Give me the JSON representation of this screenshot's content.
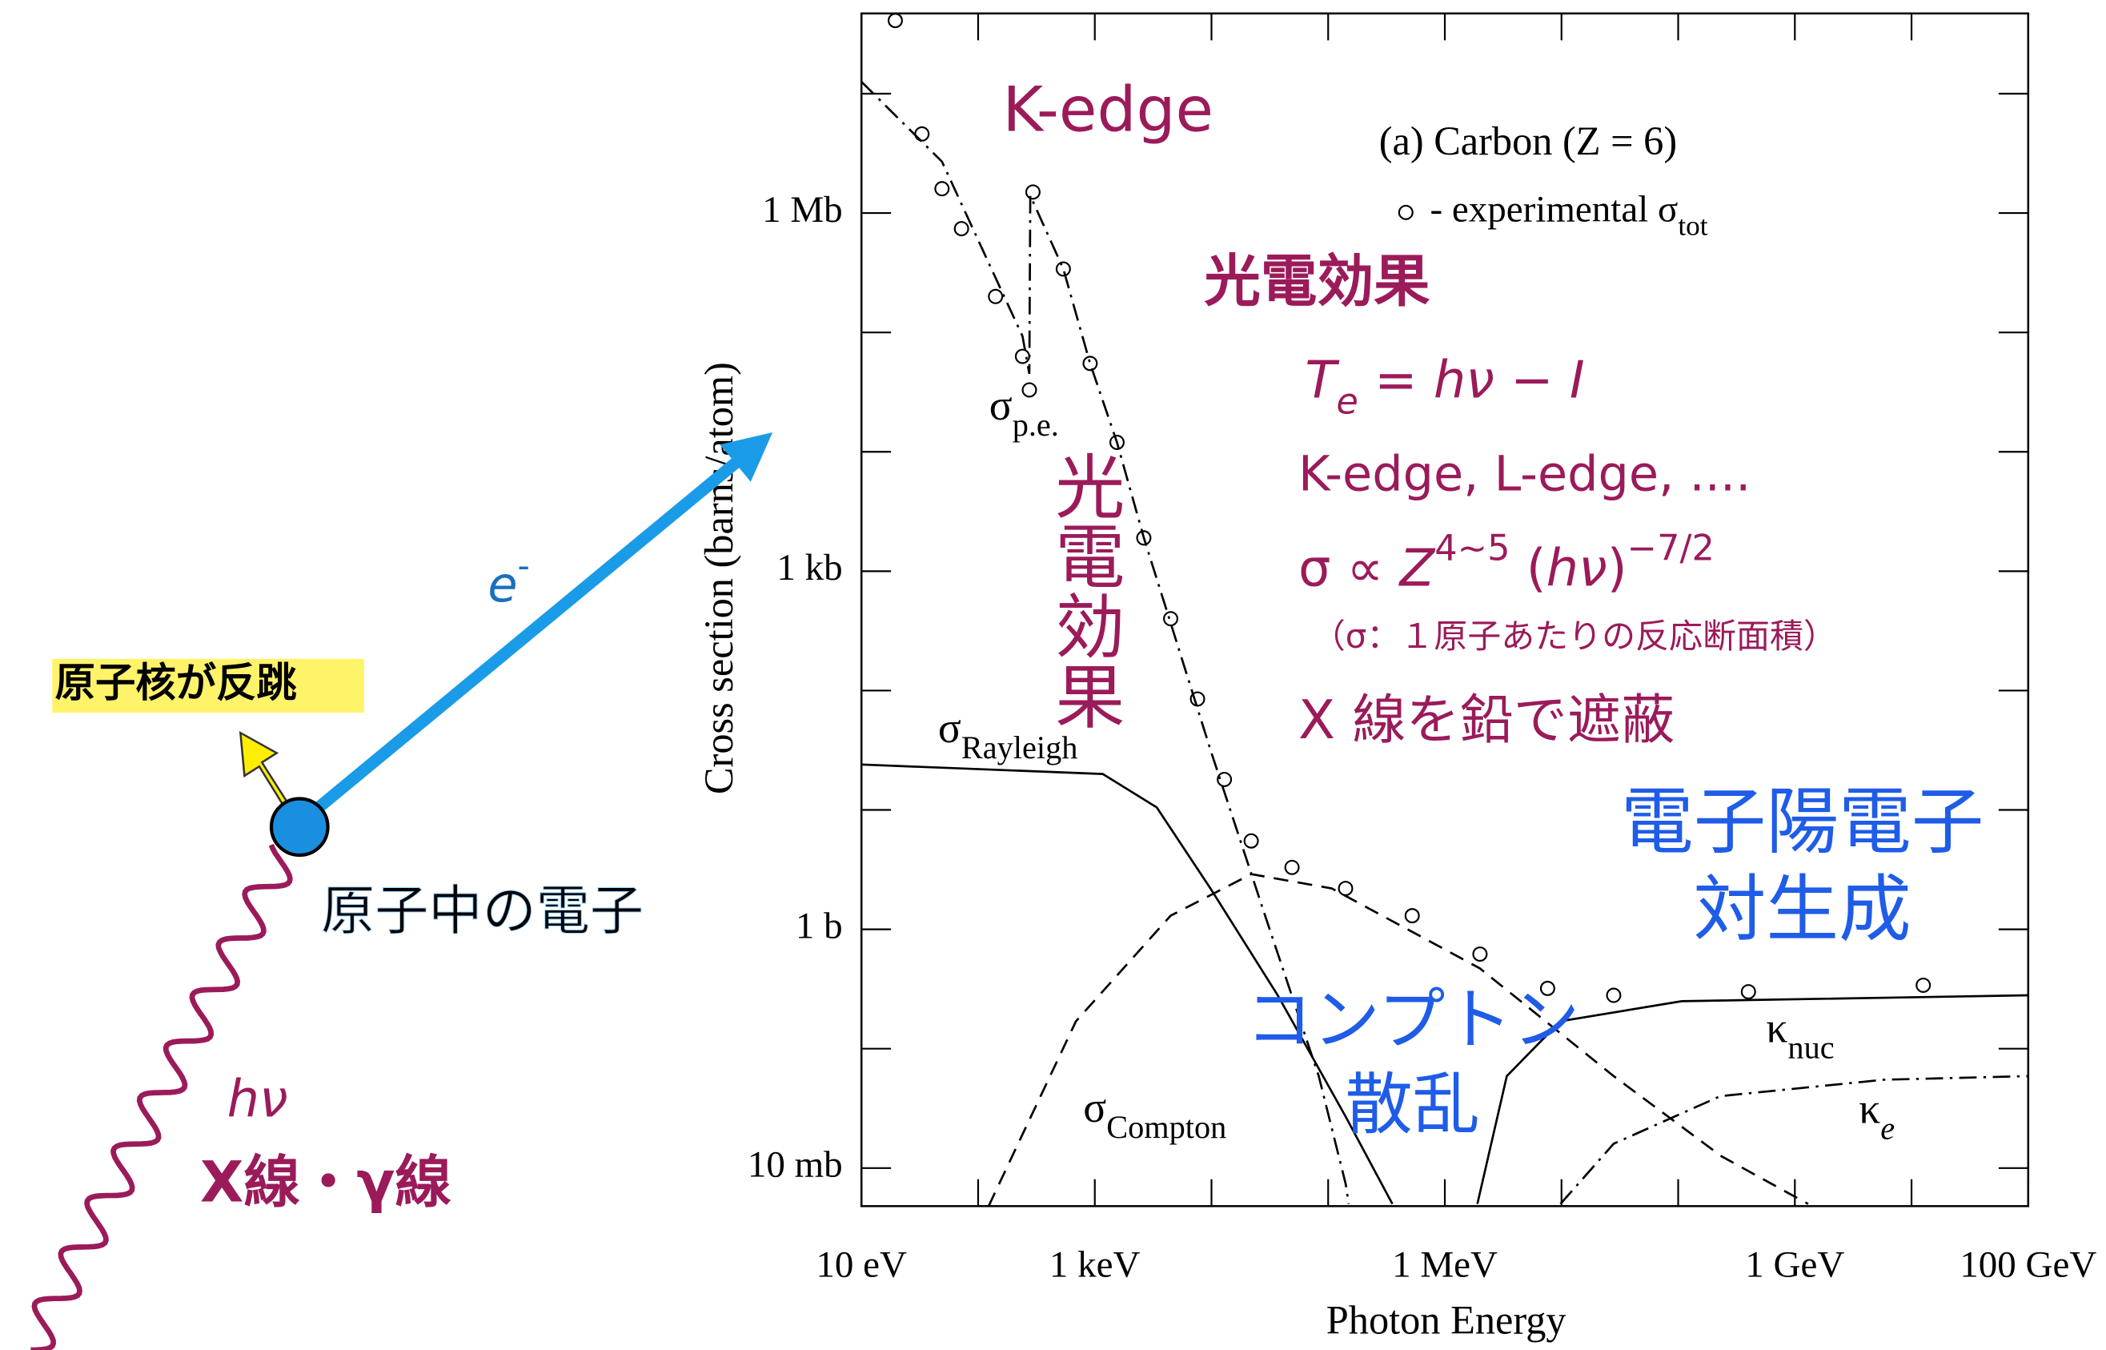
{
  "chart_data": {
    "type": "line",
    "title": "(a) Carbon (Z = 6)",
    "legend": {
      "text": "- experimental σ",
      "sub": "tot"
    },
    "xlabel": "Photon Energy",
    "ylabel": "Cross section  (barns/atom)",
    "xscale": "log",
    "yscale": "log",
    "xlim": [
      10,
      100000000000
    ],
    "ylim": [
      0.0048,
      47000000
    ],
    "xticks": [
      {
        "value": 10,
        "label": "10 eV"
      },
      {
        "value": 1000,
        "label": "1 keV"
      },
      {
        "value": 1000000,
        "label": "1 MeV"
      },
      {
        "value": 1000000000,
        "label": "1 GeV"
      },
      {
        "value": 100000000000,
        "label": "100 GeV"
      }
    ],
    "xminorticks": [
      100,
      10000,
      100000,
      10000000,
      100000000,
      10000000000
    ],
    "yticks": [
      {
        "value": 0.01,
        "label": "10 mb"
      },
      {
        "value": 1,
        "label": "1 b"
      },
      {
        "value": 1000,
        "label": "1 kb"
      },
      {
        "value": 1000000,
        "label": "1 Mb"
      }
    ],
    "yminorticks": [
      0.1,
      10,
      100,
      10000,
      100000,
      10000000
    ],
    "series": [
      {
        "style": "markers",
        "color": "#000000",
        "x": [
          19.5,
          33,
          49,
          72,
          141,
          240,
          275,
          295,
          537,
          912,
          1550,
          2630,
          4470,
          7590,
          12900,
          21900,
          49000,
          141000,
          525000,
          2000000,
          7600000,
          28000000,
          400000000,
          12600000000
        ],
        "values": [
          41000000,
          4600000,
          1600000,
          740000,
          200000,
          63000,
          33000,
          1500000,
          340000,
          55000,
          12000,
          1900,
          400,
          85,
          18,
          5.5,
          3.3,
          2.2,
          1.3,
          0.62,
          0.32,
          0.28,
          0.3,
          0.34
        ]
      },
      {
        "style": "dashdot",
        "color": "#000000",
        "label": {
          "symbol": "σ",
          "sub": "p.e."
        },
        "x": [
          10,
          49,
          240,
          275,
          280,
          537,
          912,
          1550,
          2630,
          10000,
          28800,
          83000,
          141000,
          150000
        ],
        "values": [
          12600000,
          2700000,
          93000,
          45000,
          1400000,
          340000,
          55000,
          12000,
          1900,
          30,
          1.3,
          0.059,
          0.0074,
          0.005
        ]
      },
      {
        "style": "solid",
        "color": "#000000",
        "label": {
          "symbol": "σ",
          "sub": "Rayleigh"
        },
        "x": [
          10,
          1170,
          3400,
          9800,
          37000,
          141000,
          355000
        ],
        "values": [
          24,
          20,
          10.5,
          2.2,
          0.28,
          0.027,
          0.005
        ]
      },
      {
        "style": "dashed",
        "color": "#000000",
        "label": {
          "symbol": "σ",
          "sub": "Compton"
        },
        "x": [
          123,
          690,
          4470,
          21900,
          107000,
          2000000,
          28000000,
          234000000,
          1300000000
        ],
        "values": [
          0.0048,
          0.17,
          1.3,
          2.9,
          2.2,
          0.47,
          0.059,
          0.0126,
          0.005
        ]
      },
      {
        "style": "solid",
        "color": "#000000",
        "label": {
          "symbol": "κ",
          "sub": "nuc"
        },
        "x": [
          1900000,
          3400000,
          9800000,
          107000000,
          100000000000
        ],
        "values": [
          0.005,
          0.059,
          0.17,
          0.25,
          0.28
        ]
      },
      {
        "style": "dashdot",
        "color": "#000000",
        "label": {
          "symbol": "κ",
          "sub": "e"
        },
        "x": [
          9800000,
          28000000,
          230000000,
          5800000000,
          100000000000
        ],
        "values": [
          0.005,
          0.016,
          0.04,
          0.055,
          0.059
        ]
      }
    ]
  },
  "annotations": {
    "k_edge": "K-edge",
    "photo_title": "光電効果",
    "te": [
      {
        "text": "T",
        "style": "italic"
      },
      {
        "text": "e",
        "style": "italic-sub"
      },
      {
        "text": " = ",
        "style": "normal"
      },
      {
        "text": "hν",
        "style": "italic"
      },
      {
        "text": " − ",
        "style": "normal"
      },
      {
        "text": "I",
        "style": "italic"
      }
    ],
    "edges": "K-edge, L-edge, ....",
    "scaling": [
      {
        "text": "σ ∝ ",
        "style": "normal"
      },
      {
        "text": "Z",
        "style": "italic"
      },
      {
        "text": "4~5",
        "style": "sup"
      },
      {
        "text": " (",
        "style": "normal"
      },
      {
        "text": "hν",
        "style": "italic"
      },
      {
        "text": ")",
        "style": "normal"
      },
      {
        "text": "−7/2",
        "style": "sup"
      }
    ],
    "sigma_note": "（σ：１原子あたりの反応断面積）",
    "shield": "X 線を鉛で遮蔽",
    "photo_vertical": "光電効果",
    "pair": [
      "電子陽電子",
      "対生成"
    ],
    "compton": [
      "コンプトン",
      "散乱"
    ]
  },
  "diagram": {
    "recoil": "原子核が反跳",
    "electron": [
      {
        "text": "e",
        "style": "italic"
      },
      {
        "text": "-",
        "style": "sup"
      }
    ],
    "atomic_electron": "原子中の電子",
    "photon": "hν",
    "xray": "X線・γ線"
  }
}
